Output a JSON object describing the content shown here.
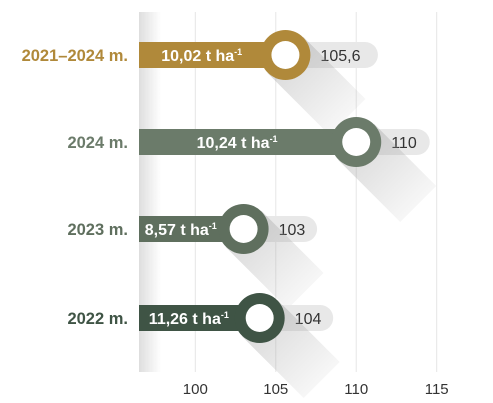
{
  "chart_data": {
    "type": "bar",
    "orientation": "horizontal",
    "categories": [
      "2021–2024 m.",
      "2024 m.",
      "2023 m.",
      "2022 m."
    ],
    "values": [
      105.6,
      110,
      103,
      104
    ],
    "value_labels": [
      "105,6",
      "110",
      "103",
      "104"
    ],
    "bar_labels": [
      "10,02 t ha",
      "10,24 t ha",
      "8,57 t ha",
      "11,26 t ha"
    ],
    "bar_label_superscript": "-1",
    "series_colors": [
      "#b0893a",
      "#6b7b6a",
      "#5f6f5e",
      "#3f5445"
    ],
    "x_ticks": [
      100,
      105,
      110,
      115
    ],
    "x_tick_labels": [
      "100",
      "105",
      "110",
      "115"
    ],
    "xlim": [
      96.5,
      118.5
    ],
    "grid": true,
    "title": "",
    "xlabel": "",
    "ylabel": ""
  }
}
